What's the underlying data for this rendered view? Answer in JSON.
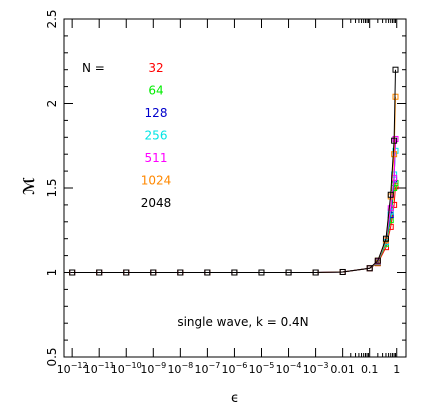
{
  "chart_data": {
    "type": "line",
    "title": "",
    "xlabel": "ϵ",
    "ylabel": "ℳ",
    "x_scale": "log",
    "x_tick_labels": [
      {
        "x": 1e-12,
        "base": "10",
        "exp": "−12"
      },
      {
        "x": 1e-11,
        "base": "10",
        "exp": "−11"
      },
      {
        "x": 1e-10,
        "base": "10",
        "exp": "−10"
      },
      {
        "x": 1e-09,
        "base": "10",
        "exp": "−9"
      },
      {
        "x": 1e-08,
        "base": "10",
        "exp": "−8"
      },
      {
        "x": 1e-07,
        "base": "10",
        "exp": "−7"
      },
      {
        "x": 1e-06,
        "base": "10",
        "exp": "−6"
      },
      {
        "x": 1e-05,
        "base": "10",
        "exp": "−5"
      },
      {
        "x": 0.0001,
        "base": "10",
        "exp": "−4"
      },
      {
        "x": 0.001,
        "base": "10",
        "exp": "−3"
      },
      {
        "x": 0.01,
        "base": "0.01",
        "exp": ""
      },
      {
        "x": 0.1,
        "base": "0.1",
        "exp": ""
      },
      {
        "x": 1,
        "base": "1",
        "exp": ""
      }
    ],
    "y_tick_labels": [
      "0.5",
      "1",
      "1.5",
      "2",
      "2.5"
    ],
    "y_ticks": [
      0.5,
      1,
      1.5,
      2,
      2.5
    ],
    "xlim": [
      5e-13,
      2.2
    ],
    "ylim": [
      0.5,
      2.5
    ],
    "grid": false,
    "annotation": "single wave, k = 0.4N",
    "legend": {
      "header": "N =",
      "placement": "top-left"
    },
    "x": [
      1e-12,
      1e-11,
      1e-10,
      1e-09,
      1e-08,
      1e-07,
      1e-06,
      1e-05,
      0.0001,
      0.001,
      0.01,
      0.1,
      0.2,
      0.4,
      0.6,
      0.8,
      0.9
    ],
    "series": [
      {
        "name": "32",
        "color": "#ff0000",
        "values": [
          1,
          1,
          1,
          1,
          1,
          1,
          1,
          1,
          1,
          1,
          1.003,
          1.025,
          1.055,
          1.15,
          1.27,
          1.4,
          1.51
        ]
      },
      {
        "name": "64",
        "color": "#00ee00",
        "values": [
          1,
          1,
          1,
          1,
          1,
          1,
          1,
          1,
          1,
          1,
          1.003,
          1.025,
          1.06,
          1.17,
          1.31,
          1.5,
          1.53
        ]
      },
      {
        "name": "128",
        "color": "#0000cc",
        "values": [
          1,
          1,
          1,
          1,
          1,
          1,
          1,
          1,
          1,
          1,
          1.003,
          1.025,
          1.065,
          1.18,
          1.34,
          1.55,
          1.79
        ]
      },
      {
        "name": "256",
        "color": "#00e5e5",
        "values": [
          1,
          1,
          1,
          1,
          1,
          1,
          1,
          1,
          1,
          1,
          1.003,
          1.025,
          1.065,
          1.18,
          1.36,
          1.58,
          1.72
        ]
      },
      {
        "name": "511",
        "color": "#ff00ff",
        "values": [
          1,
          1,
          1,
          1,
          1,
          1,
          1,
          1,
          1,
          1,
          1.003,
          1.025,
          1.065,
          1.19,
          1.38,
          1.56,
          1.79
        ]
      },
      {
        "name": "1024",
        "color": "#ff8800",
        "values": [
          1,
          1,
          1,
          1,
          1,
          1,
          1,
          1,
          1,
          1,
          1.003,
          1.025,
          1.07,
          1.19,
          1.45,
          1.7,
          2.04
        ]
      },
      {
        "name": "2048",
        "color": "#000000",
        "values": [
          1,
          1,
          1,
          1,
          1,
          1,
          1,
          1,
          1,
          1,
          1.003,
          1.025,
          1.07,
          1.2,
          1.46,
          1.78,
          2.2
        ]
      }
    ]
  }
}
